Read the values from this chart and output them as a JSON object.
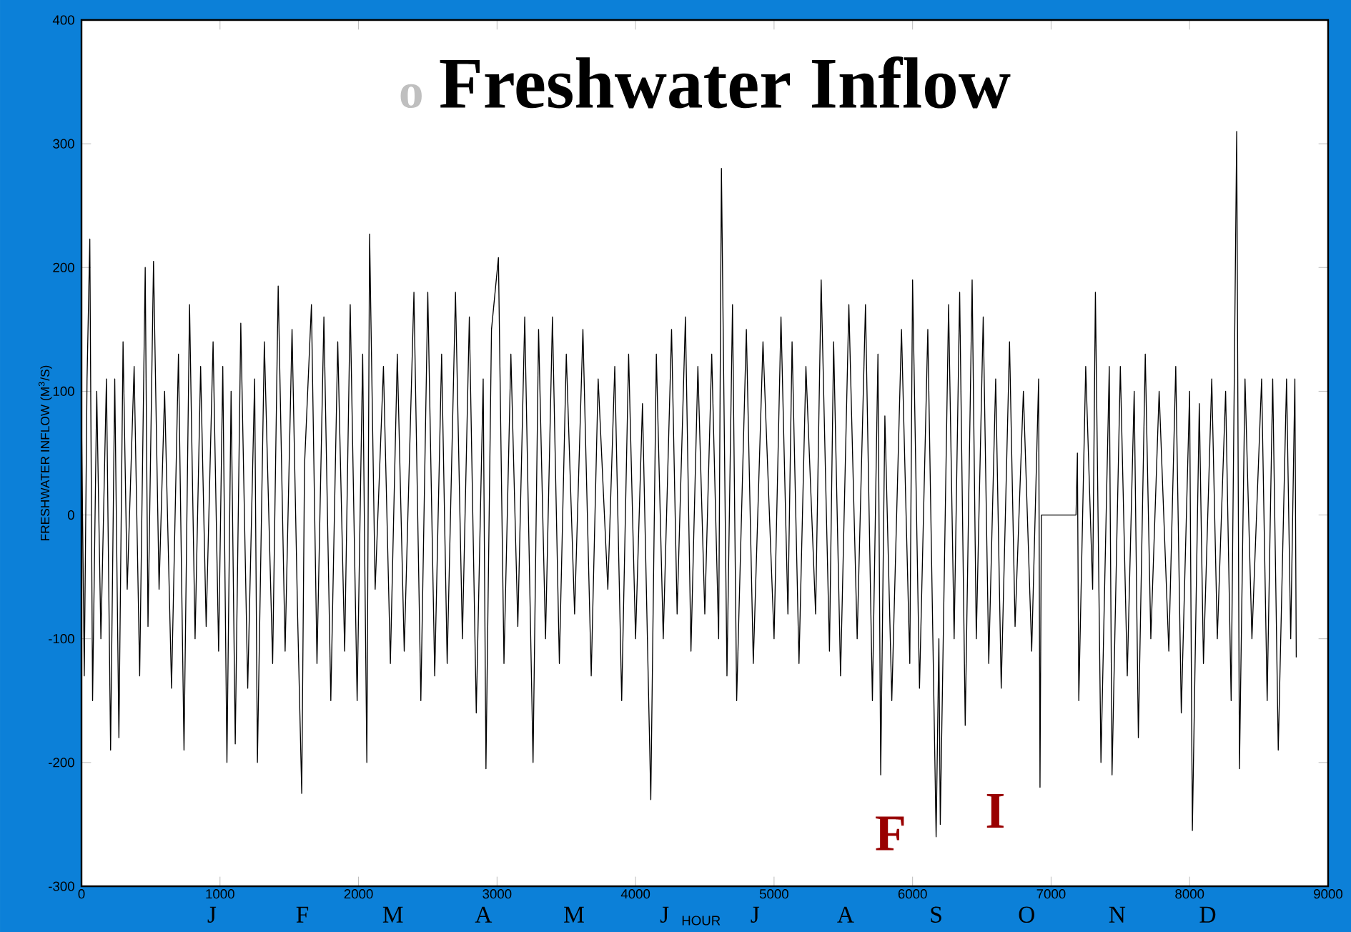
{
  "chart_data": {
    "type": "line",
    "title": "Freshwater Inflow",
    "xlabel": "HOUR",
    "ylabel": "FRESHWATER INFLOW (M$^{3}$/S)",
    "xlim": [
      0,
      9000
    ],
    "xticks": [
      0,
      1000,
      2000,
      3000,
      4000,
      5000,
      6000,
      7000,
      8000,
      9000
    ],
    "ylim": [
      -300,
      400
    ],
    "yticks": [
      -300,
      -200,
      -100,
      0,
      100,
      200,
      300,
      400
    ],
    "x": [
      0,
      20,
      40,
      60,
      80,
      110,
      140,
      180,
      210,
      240,
      270,
      300,
      330,
      380,
      420,
      460,
      480,
      520,
      560,
      600,
      650,
      700,
      740,
      780,
      820,
      860,
      900,
      950,
      990,
      1020,
      1050,
      1080,
      1110,
      1150,
      1200,
      1250,
      1270,
      1320,
      1380,
      1420,
      1470,
      1520,
      1560,
      1590,
      1610,
      1660,
      1700,
      1750,
      1800,
      1850,
      1900,
      1940,
      1990,
      2030,
      2060,
      2080,
      2120,
      2180,
      2230,
      2280,
      2330,
      2400,
      2450,
      2500,
      2550,
      2600,
      2640,
      2700,
      2750,
      2800,
      2850,
      2900,
      2920,
      2960,
      3010,
      3050,
      3100,
      3150,
      3200,
      3260,
      3300,
      3350,
      3400,
      3450,
      3500,
      3560,
      3620,
      3680,
      3730,
      3800,
      3850,
      3900,
      3950,
      4000,
      4050,
      4110,
      4150,
      4200,
      4260,
      4300,
      4360,
      4400,
      4450,
      4500,
      4550,
      4600,
      4620,
      4660,
      4700,
      4730,
      4800,
      4850,
      4920,
      5000,
      5050,
      5100,
      5130,
      5180,
      5230,
      5300,
      5340,
      5400,
      5430,
      5480,
      5540,
      5600,
      5660,
      5710,
      5750,
      5770,
      5800,
      5850,
      5920,
      5980,
      6000,
      6050,
      6110,
      6170,
      6190,
      6200,
      6260,
      6300,
      6340,
      6380,
      6430,
      6460,
      6510,
      6550,
      6600,
      6640,
      6700,
      6740,
      6800,
      6860,
      6910,
      6920,
      6930,
      7180,
      7190,
      7200,
      7250,
      7300,
      7320,
      7360,
      7420,
      7440,
      7500,
      7550,
      7600,
      7630,
      7680,
      7720,
      7780,
      7850,
      7900,
      7940,
      8000,
      8020,
      8070,
      8100,
      8160,
      8200,
      8260,
      8300,
      8340,
      8360,
      8400,
      8450,
      8520,
      8560,
      8600,
      8640,
      8700,
      8730,
      8760,
      8770
    ],
    "series": [
      {
        "color": "#000000",
        "values": [
          80,
          -130,
          110,
          223,
          -150,
          100,
          -100,
          110,
          -190,
          110,
          -180,
          140,
          -60,
          120,
          -130,
          200,
          -90,
          205,
          -60,
          100,
          -140,
          130,
          -190,
          170,
          -100,
          120,
          -90,
          140,
          -110,
          120,
          -200,
          100,
          -185,
          155,
          -140,
          110,
          -200,
          140,
          -120,
          185,
          -110,
          150,
          -80,
          -225,
          40,
          170,
          -120,
          160,
          -150,
          140,
          -110,
          170,
          -150,
          130,
          -200,
          227,
          -60,
          120,
          -120,
          130,
          -110,
          180,
          -150,
          180,
          -130,
          130,
          -120,
          180,
          -100,
          160,
          -160,
          110,
          -205,
          150,
          208,
          -120,
          130,
          -90,
          160,
          -200,
          150,
          -100,
          160,
          -120,
          130,
          -80,
          150,
          -130,
          110,
          -60,
          120,
          -150,
          130,
          -100,
          90,
          -230,
          130,
          -100,
          150,
          -80,
          160,
          -110,
          120,
          -80,
          130,
          -100,
          280,
          -130,
          170,
          -150,
          150,
          -120,
          140,
          -100,
          160,
          -80,
          140,
          -120,
          120,
          -80,
          190,
          -110,
          140,
          -130,
          170,
          -100,
          170,
          -150,
          130,
          -210,
          80,
          -150,
          150,
          -120,
          190,
          -140,
          150,
          -260,
          -100,
          -250,
          170,
          -100,
          180,
          -170,
          190,
          -100,
          160,
          -120,
          110,
          -140,
          140,
          -90,
          100,
          -110,
          110,
          -220,
          0,
          0,
          50,
          -150,
          120,
          -60,
          180,
          -200,
          120,
          -210,
          120,
          -130,
          100,
          -180,
          130,
          -100,
          100,
          -110,
          120,
          -160,
          100,
          -255,
          90,
          -120,
          110,
          -100,
          100,
          -150,
          310,
          -205,
          110,
          -100,
          110,
          -150,
          110,
          -190,
          110,
          -100,
          110,
          -115
        ]
      }
    ],
    "annotations": [
      "o",
      "J",
      "F",
      "M",
      "A",
      "M",
      "J",
      "J",
      "A",
      "S",
      "O",
      "N",
      "D",
      "F",
      "I"
    ]
  }
}
